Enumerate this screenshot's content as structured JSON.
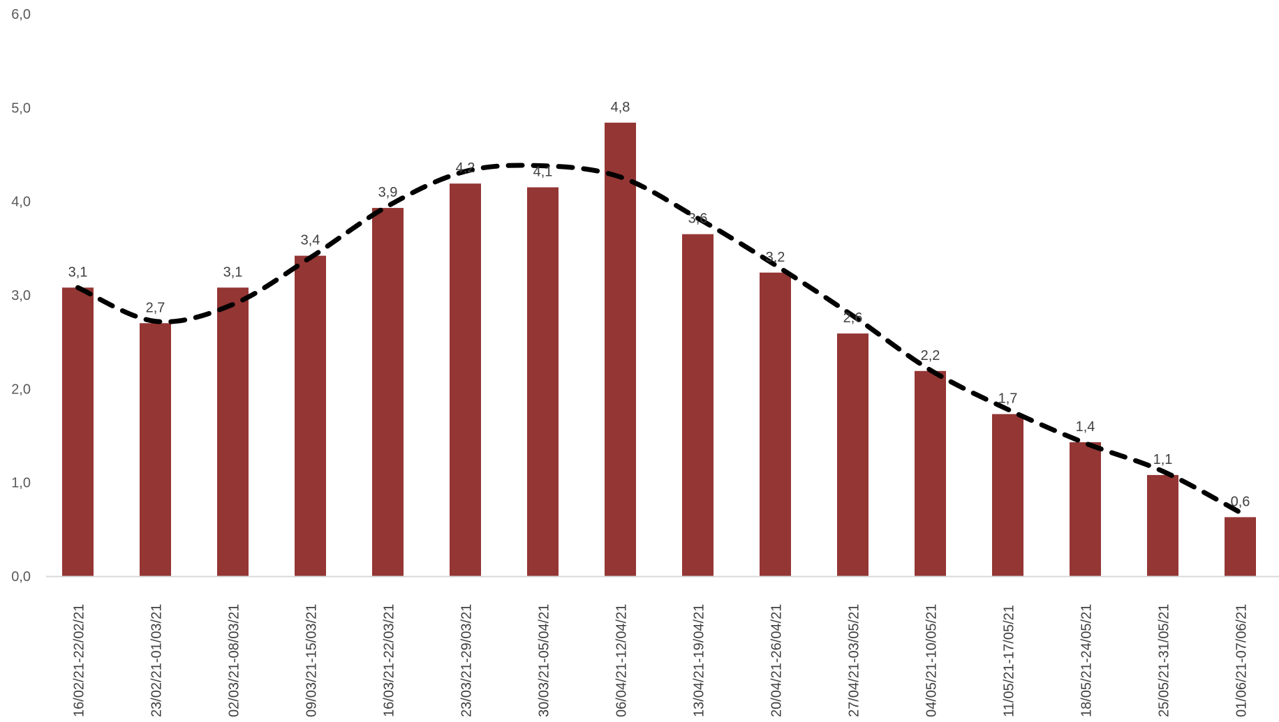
{
  "chart_data": {
    "type": "bar",
    "categories": [
      "16/02/21-22/02/21",
      "23/02/21-01/03/21",
      "02/03/21-08/03/21",
      "09/03/21-15/03/21",
      "16/03/21-22/03/21",
      "23/03/21-29/03/21",
      "30/03/21-05/04/21",
      "06/04/21-12/04/21",
      "13/04/21-19/04/21",
      "20/04/21-26/04/21",
      "27/04/21-03/05/21",
      "04/05/21-10/05/21",
      "11/05/21-17/05/21",
      "18/05/21-24/05/21",
      "25/05/21-31/05/21",
      "01/06/21-07/06/21"
    ],
    "values": [
      3.08,
      2.7,
      3.08,
      3.42,
      3.93,
      4.19,
      4.15,
      4.84,
      3.65,
      3.24,
      2.59,
      2.19,
      1.73,
      1.43,
      1.08,
      0.63
    ],
    "data_labels": [
      "3,1",
      "2,7",
      "3,1",
      "3,4",
      "3,9",
      "4,2",
      "4,1",
      "4,8",
      "3,6",
      "3,2",
      "2,6",
      "2,2",
      "1,7",
      "1,4",
      "1,1",
      "0,6"
    ],
    "trendline": {
      "style": "dashed",
      "color": "#000000",
      "values": [
        3.08,
        2.72,
        2.9,
        3.4,
        3.95,
        4.32,
        4.38,
        4.26,
        3.82,
        3.32,
        2.78,
        2.2,
        1.78,
        1.42,
        1.12,
        0.68
      ]
    },
    "ylim": [
      0,
      6
    ],
    "yticks": [
      0,
      1,
      2,
      3,
      4,
      5,
      6
    ],
    "ytick_labels": [
      "0,0",
      "1,0",
      "2,0",
      "3,0",
      "4,0",
      "5,0",
      "6,0"
    ],
    "title": "",
    "xlabel": "",
    "ylabel": "",
    "grid": false,
    "legend": "none",
    "bar_color": "#943634",
    "axis_color": "#d9d9d9"
  }
}
